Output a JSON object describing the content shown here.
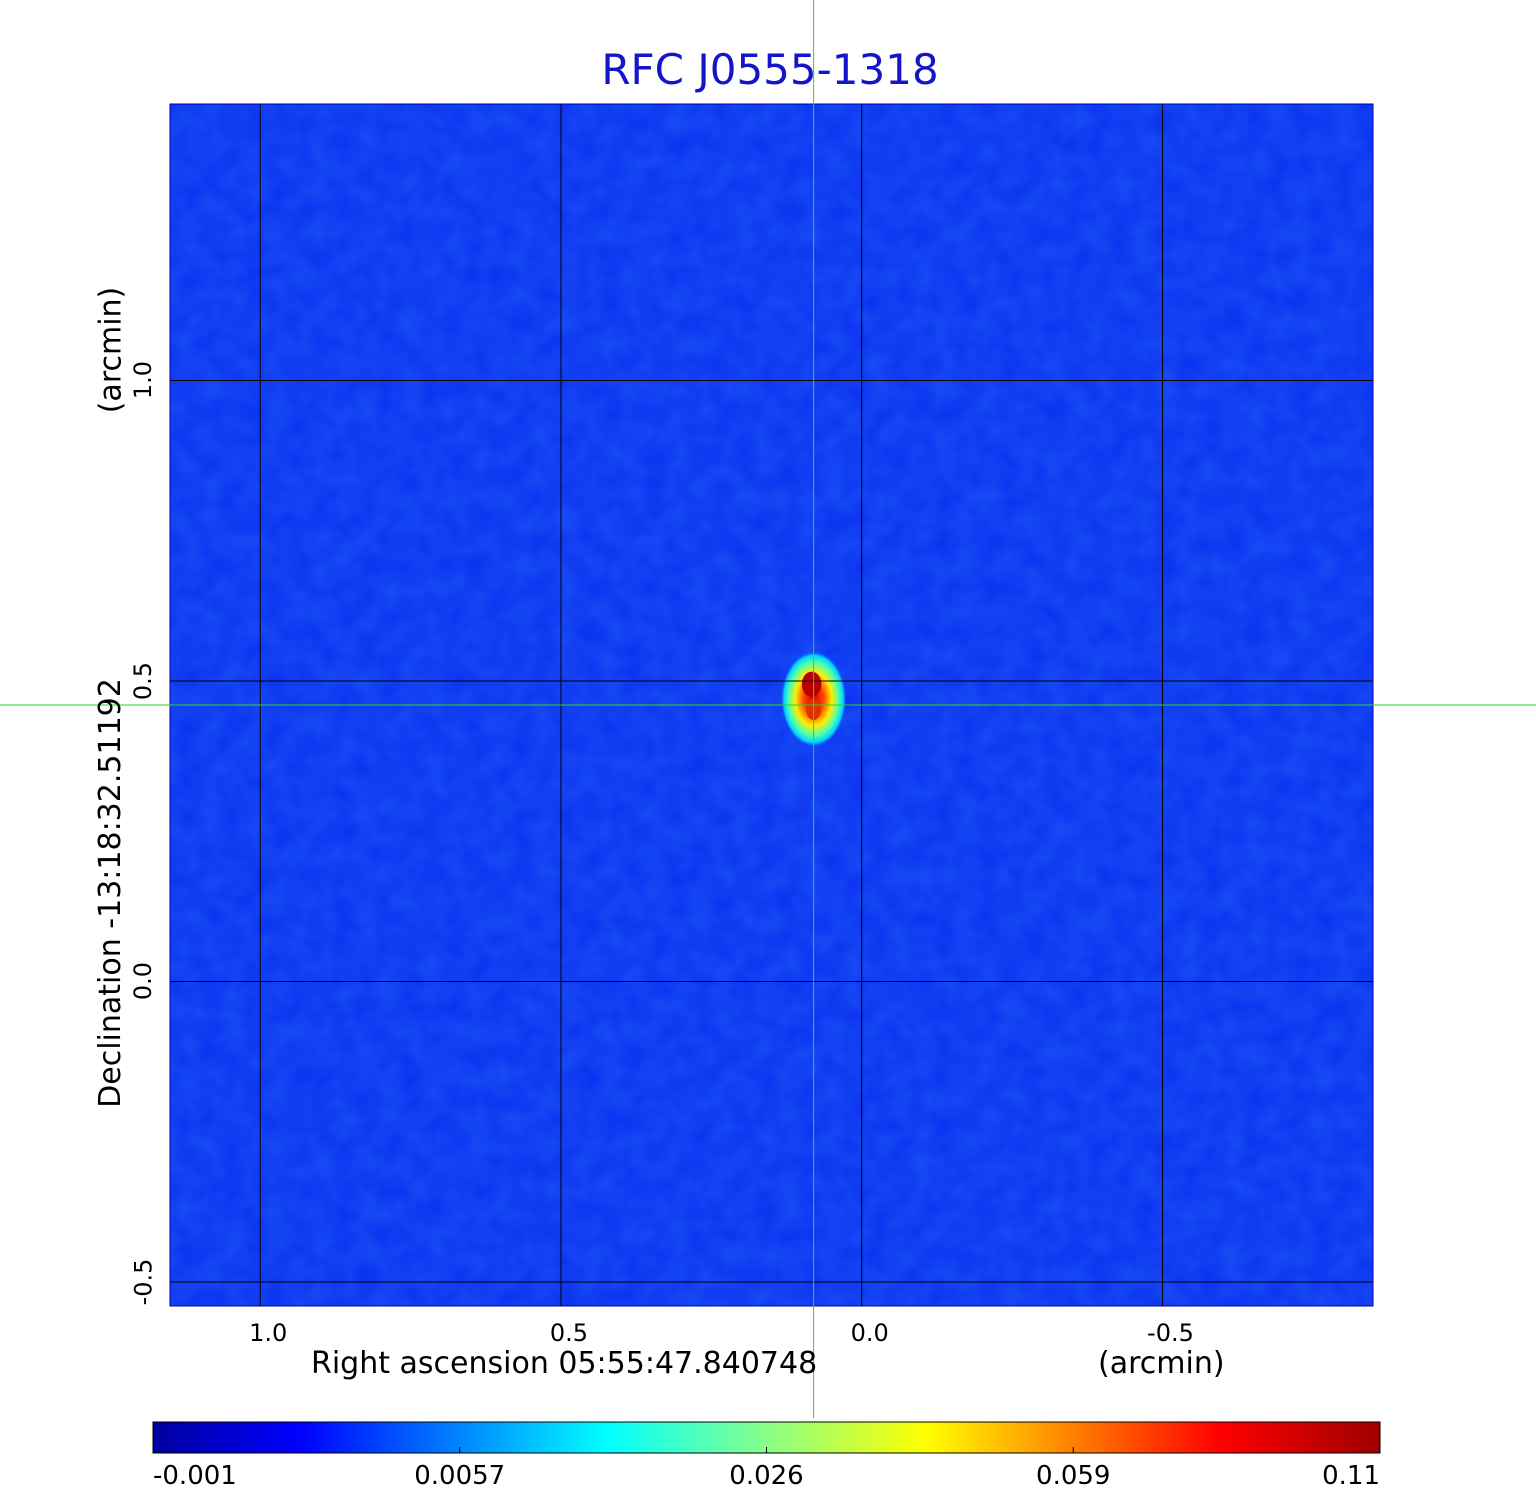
{
  "chart_data": {
    "type": "heatmap",
    "title": "RFC J0555-1318",
    "xlabel": "Right ascension  05:55:47.840748",
    "xlabel_unit": "(arcmin)",
    "ylabel": "Declination  -13:18:32.51192",
    "ylabel_unit": "(arcmin)",
    "xlim": [
      1.15,
      -0.85
    ],
    "ylim": [
      -0.54,
      1.46
    ],
    "x_ticks": [
      {
        "value": 1.0,
        "label": "1.0"
      },
      {
        "value": 0.5,
        "label": "0.5"
      },
      {
        "value": 0.0,
        "label": "0.0"
      },
      {
        "value": -0.5,
        "label": "-0.5"
      }
    ],
    "y_ticks": [
      {
        "value": 1.0,
        "label": "1.0"
      },
      {
        "value": 0.5,
        "label": "0.5"
      },
      {
        "value": 0.0,
        "label": "0.0"
      },
      {
        "value": -0.5,
        "label": "-0.5"
      }
    ],
    "grid": true,
    "crosshair": {
      "x": 0.08,
      "y": 0.46,
      "color": "#22dd22"
    },
    "source": {
      "x": 0.08,
      "y": 0.47,
      "peak": 0.11,
      "sigma_x": 0.025,
      "sigma_y": 0.07,
      "shape": "double-peak"
    },
    "colorbar": {
      "colormap": "jet",
      "ticks": [
        {
          "value": -0.001,
          "label": "-0.001"
        },
        {
          "value": 0.0057,
          "label": "0.0057"
        },
        {
          "value": 0.026,
          "label": "0.026"
        },
        {
          "value": 0.059,
          "label": "0.059"
        },
        {
          "value": 0.11,
          "label": "0.11"
        }
      ]
    }
  }
}
